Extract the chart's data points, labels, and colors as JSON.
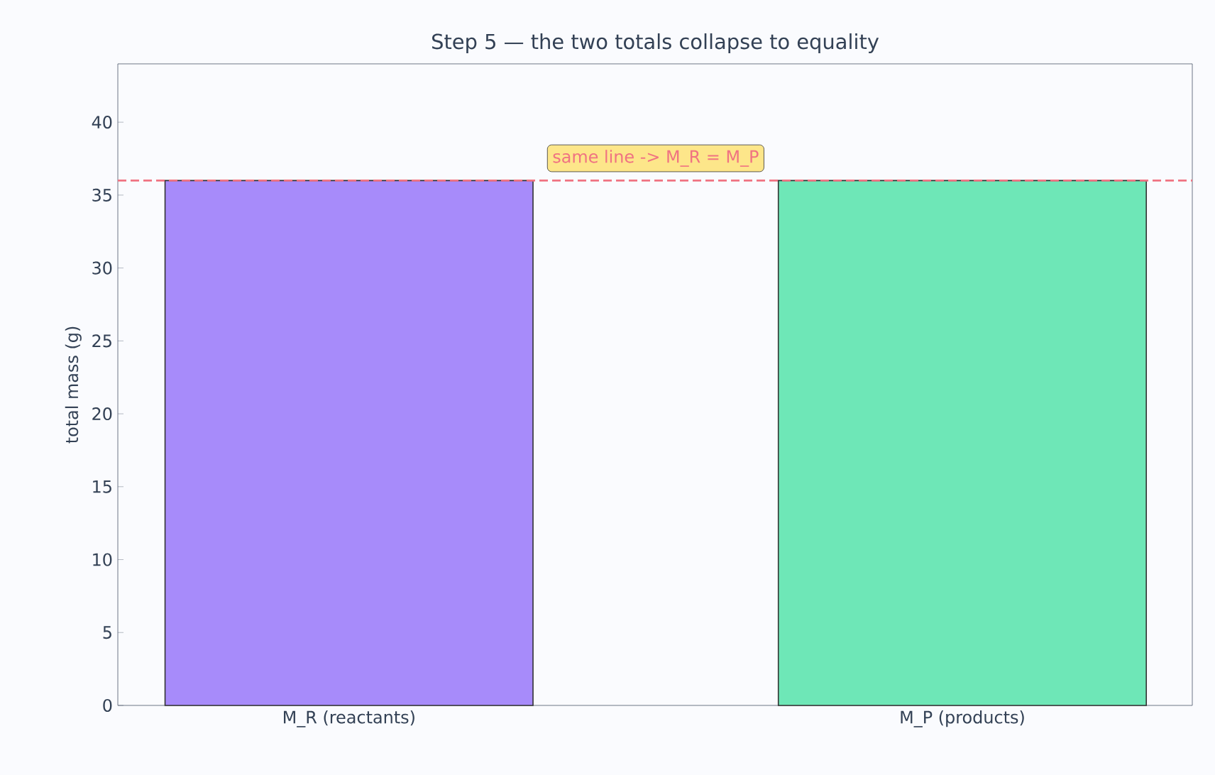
{
  "chart_data": {
    "type": "bar",
    "title": "Step 5 — the two totals collapse to equality",
    "ylabel": "total mass (g)",
    "categories": [
      "M_R (reactants)",
      "M_P (products)"
    ],
    "values": [
      36,
      36
    ],
    "colors": [
      "#a78bfa",
      "#6ee7b7"
    ],
    "ylim": [
      0,
      44
    ],
    "yticks": [
      0,
      5,
      10,
      15,
      20,
      25,
      30,
      35,
      40
    ],
    "ref_lines": [
      {
        "axis": "y",
        "value": 36,
        "label": "same line  ->  M_R = M_P",
        "color": "#f07382",
        "line_style": "dashed"
      }
    ]
  }
}
